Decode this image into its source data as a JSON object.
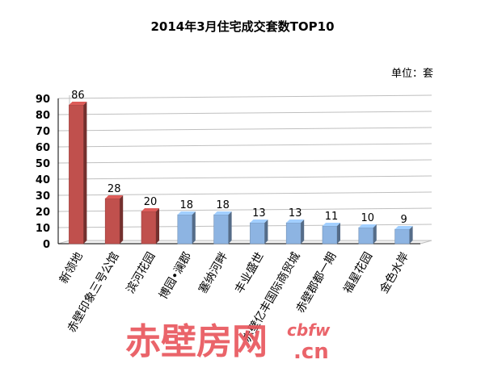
{
  "chart_data": {
    "type": "bar",
    "title": "2014年3月住宅成交套数TOP10",
    "unit": "单位：套",
    "categories": [
      "新领地",
      "赤壁印象三号公馆",
      "滨河花园",
      "博园•澜郡",
      "塞纳河畔",
      "丰业盛世",
      "赤壁亿丰国际商贸城",
      "赤壁郡都一期",
      "福星花园",
      "金色水岸"
    ],
    "values": [
      86,
      28,
      20,
      18,
      18,
      13,
      13,
      11,
      10,
      9
    ],
    "bar_colors": [
      "#c0504d",
      "#c0504d",
      "#c0504d",
      "#8db4e2",
      "#8db4e2",
      "#8db4e2",
      "#8db4e2",
      "#8db4e2",
      "#8db4e2",
      "#8db4e2"
    ],
    "ylim": [
      0,
      90
    ],
    "yticks": [
      0,
      10,
      20,
      30,
      40,
      50,
      60,
      70,
      80,
      90
    ],
    "grid": true,
    "data_labels": true
  },
  "watermark": {
    "text_cn": "赤壁房网",
    "text_top": "cbfw",
    "text_bottom": ".cn",
    "color": "#e8545a"
  }
}
